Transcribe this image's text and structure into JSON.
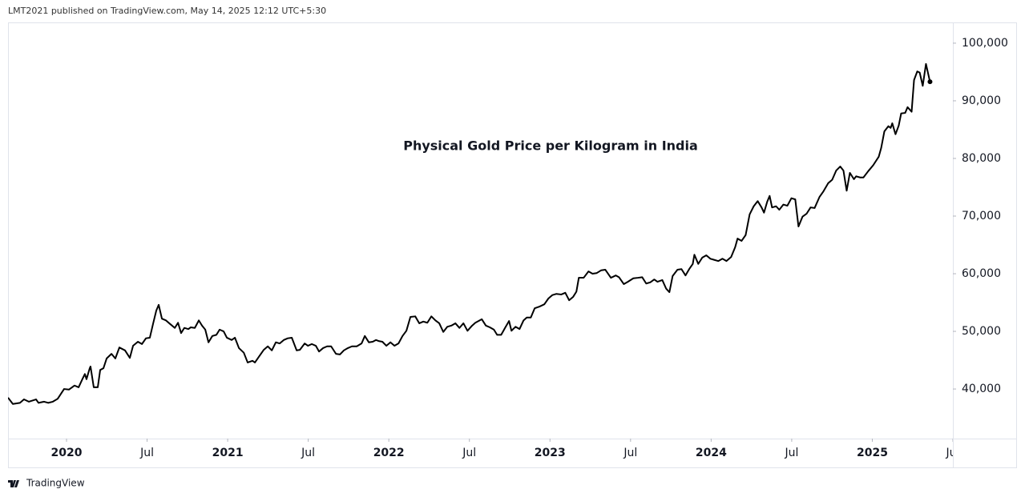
{
  "header": "LMT2021 published on TradingView.com, May 14, 2025 12:12 UTC+5:30",
  "footer": "TradingView",
  "chart_data": {
    "type": "line",
    "title": "Physical Gold Price per Kilogram in India",
    "x": [
      2019.637,
      2019.667,
      2019.711,
      2019.736,
      2019.766,
      2019.811,
      2019.826,
      2019.861,
      2019.886,
      2019.915,
      2019.945,
      2019.985,
      2020.015,
      2020.05,
      2020.075,
      2020.1,
      2020.114,
      2020.124,
      2020.144,
      2020.149,
      2020.169,
      2020.194,
      2020.209,
      2020.229,
      2020.249,
      2020.279,
      2020.303,
      2020.328,
      2020.363,
      2020.393,
      2020.413,
      2020.443,
      2020.468,
      2020.493,
      2020.517,
      2020.537,
      2020.557,
      2020.572,
      2020.592,
      2020.617,
      2020.642,
      2020.672,
      2020.692,
      2020.711,
      2020.731,
      2020.756,
      2020.771,
      2020.796,
      2020.821,
      2020.841,
      2020.861,
      2020.881,
      2020.905,
      2020.93,
      2020.95,
      2020.975,
      2020.995,
      2021.025,
      2021.045,
      2021.07,
      2021.1,
      2021.124,
      2021.154,
      2021.169,
      2021.194,
      2021.224,
      2021.249,
      2021.274,
      2021.299,
      2021.323,
      2021.348,
      2021.373,
      2021.398,
      2021.428,
      2021.448,
      2021.478,
      2021.498,
      2021.522,
      2021.547,
      2021.567,
      2021.592,
      2021.617,
      2021.642,
      2021.672,
      2021.697,
      2021.721,
      2021.746,
      2021.771,
      2021.801,
      2021.831,
      2021.851,
      2021.876,
      2021.9,
      2021.92,
      2021.94,
      2021.96,
      2021.985,
      2022.01,
      2022.035,
      2022.06,
      2022.085,
      2022.109,
      2022.134,
      2022.164,
      2022.189,
      2022.214,
      2022.239,
      2022.264,
      2022.289,
      2022.313,
      2022.338,
      2022.363,
      2022.388,
      2022.413,
      2022.438,
      2022.463,
      2022.488,
      2022.517,
      2022.537,
      2022.577,
      2022.602,
      2022.627,
      2022.652,
      2022.672,
      2022.697,
      2022.721,
      2022.746,
      2022.761,
      2022.786,
      2022.811,
      2022.836,
      2022.856,
      2022.881,
      2022.905,
      2022.935,
      2022.965,
      2022.99,
      2023.015,
      2023.04,
      2023.07,
      2023.095,
      2023.119,
      2023.144,
      2023.164,
      2023.179,
      2023.209,
      2023.239,
      2023.264,
      2023.289,
      2023.318,
      2023.343,
      2023.378,
      2023.408,
      2023.428,
      2023.458,
      2023.483,
      2023.517,
      2023.547,
      2023.572,
      2023.597,
      2023.622,
      2023.647,
      2023.667,
      2023.697,
      2023.721,
      2023.741,
      2023.761,
      2023.791,
      2023.816,
      2023.841,
      2023.866,
      2023.886,
      2023.896,
      2023.92,
      2023.945,
      2023.97,
      2023.995,
      2024.02,
      2024.045,
      2024.07,
      2024.095,
      2024.124,
      2024.149,
      2024.164,
      2024.189,
      2024.214,
      2024.239,
      2024.264,
      2024.289,
      2024.313,
      2024.328,
      2024.348,
      2024.363,
      2024.378,
      2024.403,
      2024.423,
      2024.448,
      2024.473,
      2024.498,
      2024.522,
      2024.542,
      2024.567,
      2024.592,
      2024.617,
      2024.642,
      2024.672,
      2024.697,
      2024.726,
      2024.751,
      2024.776,
      2024.801,
      2024.821,
      2024.841,
      2024.861,
      2024.886,
      2024.9,
      2024.925,
      2024.945,
      2024.975,
      2025.005,
      2025.04,
      2025.055,
      2025.075,
      2025.1,
      2025.114,
      2025.124,
      2025.144,
      2025.164,
      2025.179,
      2025.204,
      2025.219,
      2025.244,
      2025.259,
      2025.279,
      2025.294,
      2025.313,
      2025.333,
      2025.358
    ],
    "series": [
      {
        "name": "Physical Gold Price per Kilogram in India",
        "color": "#000000",
        "values": [
          38500,
          37400,
          37600,
          38200,
          37800,
          38200,
          37600,
          37800,
          37600,
          37800,
          38300,
          40000,
          39900,
          40600,
          40300,
          41800,
          42600,
          41700,
          43600,
          43900,
          40300,
          40300,
          43300,
          43600,
          45300,
          46100,
          45300,
          47200,
          46700,
          45400,
          47500,
          48200,
          47800,
          48800,
          48900,
          51300,
          53600,
          54600,
          52200,
          51900,
          51300,
          50600,
          51500,
          49700,
          50600,
          50400,
          50700,
          50600,
          51900,
          51000,
          50300,
          48100,
          49200,
          49400,
          50300,
          50000,
          48900,
          48500,
          48900,
          47100,
          46300,
          44600,
          44900,
          44600,
          45600,
          46800,
          47400,
          46700,
          48100,
          47900,
          48500,
          48800,
          48900,
          46700,
          46800,
          47900,
          47500,
          47800,
          47500,
          46500,
          47100,
          47400,
          47400,
          46100,
          46000,
          46700,
          47100,
          47400,
          47400,
          47900,
          49200,
          48100,
          48200,
          48500,
          48300,
          48200,
          47500,
          48100,
          47500,
          47900,
          49200,
          50100,
          52500,
          52600,
          51400,
          51700,
          51500,
          52600,
          51900,
          51400,
          49900,
          50800,
          51000,
          51400,
          50600,
          51400,
          50100,
          51000,
          51500,
          52100,
          51000,
          50700,
          50300,
          49400,
          49400,
          50600,
          51800,
          50100,
          50800,
          50400,
          51900,
          52400,
          52400,
          54000,
          54300,
          54700,
          55700,
          56300,
          56500,
          56400,
          56700,
          55400,
          56000,
          56900,
          59300,
          59300,
          60400,
          60000,
          60100,
          60600,
          60700,
          59300,
          59700,
          59400,
          58200,
          58600,
          59200,
          59300,
          59400,
          58300,
          58500,
          59000,
          58600,
          58900,
          57400,
          56800,
          59600,
          60700,
          60800,
          59700,
          60900,
          61700,
          63300,
          61700,
          62800,
          63200,
          62600,
          62400,
          62200,
          62600,
          62200,
          62900,
          64600,
          66100,
          65700,
          66700,
          70300,
          71700,
          72600,
          71500,
          70600,
          72500,
          73500,
          71500,
          71700,
          71100,
          72000,
          71800,
          73100,
          72900,
          68200,
          69900,
          70400,
          71500,
          71400,
          73300,
          74300,
          75700,
          76300,
          77900,
          78600,
          77900,
          74400,
          77500,
          76400,
          76900,
          76700,
          76700,
          77800,
          78800,
          80300,
          81800,
          84700,
          85600,
          85300,
          86100,
          84200,
          85700,
          87800,
          87900,
          88900,
          88100,
          93600,
          95100,
          94900,
          92600,
          96400,
          93300
        ]
      }
    ],
    "xlim": [
      2019.637,
      2025.5
    ],
    "ylim": [
      31400,
      103600
    ],
    "xticks": [
      2020,
      {
        "value": 2020.5,
        "label": "Jul"
      },
      2021,
      {
        "value": 2021.5,
        "label": "Jul"
      },
      2022,
      {
        "value": 2022.5,
        "label": "Jul"
      },
      2023,
      {
        "value": 2023.5,
        "label": "Jul"
      },
      2024,
      {
        "value": 2024.5,
        "label": "Jul"
      },
      2025,
      {
        "value": 2025.5,
        "label": "Jul"
      }
    ],
    "yticks": [
      {
        "value": 40000,
        "label": "40,000"
      },
      {
        "value": 50000,
        "label": "50,000"
      },
      {
        "value": 60000,
        "label": "60,000"
      },
      {
        "value": 70000,
        "label": "70,000"
      },
      {
        "value": 80000,
        "label": "80,000"
      },
      {
        "value": 90000,
        "label": "90,000"
      },
      {
        "value": 100000,
        "label": "100,000"
      }
    ],
    "grid": false
  }
}
